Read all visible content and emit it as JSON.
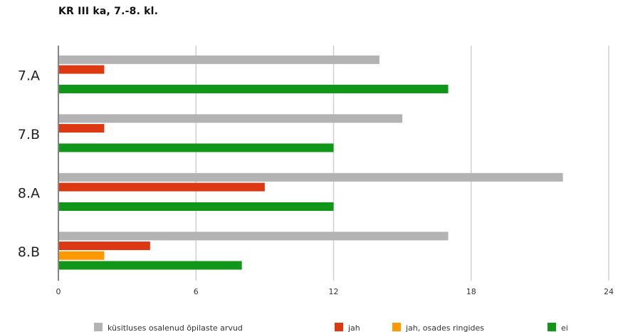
{
  "chart_data": {
    "type": "bar",
    "orientation": "horizontal",
    "title": "KR III ka, 7.-8. kl.",
    "categories": [
      "7.A",
      "7.B",
      "8.A",
      "8.B"
    ],
    "series": [
      {
        "name": "küsitluses osalenud õpilaste arvud",
        "color": "#b3b3b3",
        "values": [
          14,
          15,
          22,
          17
        ]
      },
      {
        "name": "jah",
        "color": "#dc3912",
        "values": [
          2,
          2,
          9,
          4
        ]
      },
      {
        "name": "jah, osades ringides",
        "color": "#ff9900",
        "values": [
          0,
          0,
          0,
          2
        ]
      },
      {
        "name": "ei",
        "color": "#109618",
        "values": [
          17,
          12,
          12,
          8
        ]
      }
    ],
    "xlim": [
      0,
      24
    ],
    "xticks": [
      "0",
      "6",
      "12",
      "18",
      "24"
    ],
    "grid": true,
    "legend_position": "bottom"
  }
}
